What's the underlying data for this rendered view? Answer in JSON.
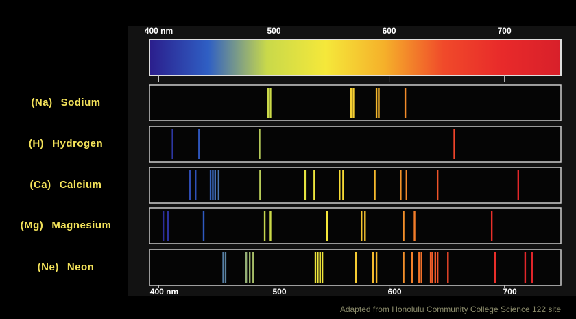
{
  "chart_data": {
    "type": "spectrum",
    "xlim": [
      392,
      749
    ],
    "xticks": [
      {
        "value": 400,
        "label": "400 nm"
      },
      500,
      600,
      700
    ],
    "colors": [
      "#2b1e8c",
      "#2f5fc4",
      "#c9d94a",
      "#f5e83a",
      "#f5b02a",
      "#f04a2a",
      "#e82a2a",
      "#d8202a"
    ],
    "series": [
      {
        "symbol": "(Na)",
        "name": "Sodium",
        "values": [
          495,
          497,
          567,
          569,
          589,
          591,
          614
        ]
      },
      {
        "symbol": "(H)",
        "name": "Hydrogen",
        "values": [
          412,
          435,
          487.5,
          656.5
        ]
      },
      {
        "symbol": "(Ca)",
        "name": "Calcium",
        "values": [
          427,
          432,
          445,
          447,
          449,
          452,
          488,
          527,
          535,
          557,
          560,
          587.5,
          610,
          615,
          642,
          712
        ]
      },
      {
        "symbol": "(Mg)",
        "name": "Magnesium",
        "values": [
          404,
          408,
          439,
          492,
          497,
          546,
          576,
          579,
          612.5,
          622,
          689
        ]
      },
      {
        "symbol": "(Ne)",
        "name": "Neon",
        "values": [
          456,
          458,
          476,
          479,
          482,
          536,
          538,
          540,
          542,
          571,
          586,
          589,
          612.5,
          620,
          626,
          628,
          636,
          637.5,
          640,
          642,
          651,
          692,
          718,
          724
        ]
      }
    ],
    "source": "Adapted from Honolulu Community College Science 122 site"
  }
}
